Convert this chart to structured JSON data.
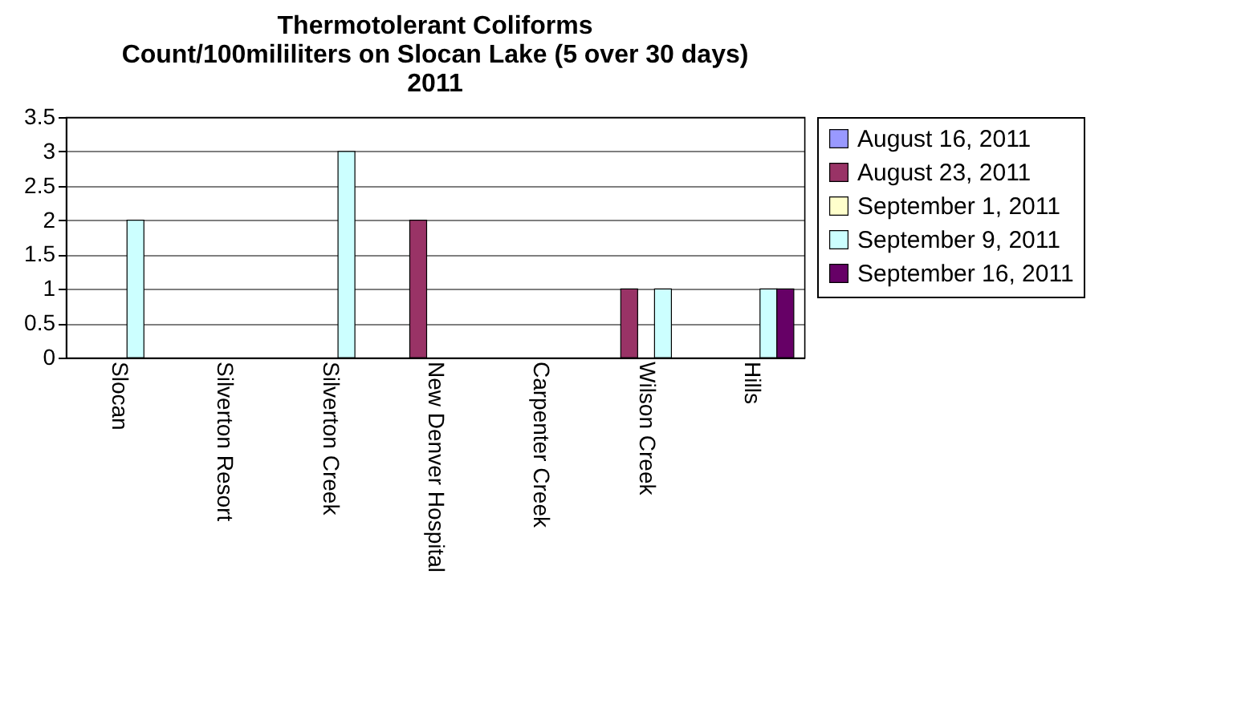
{
  "chart_data": {
    "type": "bar",
    "title": "Thermotolerant Coliforms\nCount/100mililiters on Slocan Lake (5 over 30 days)\n2011",
    "categories": [
      "Slocan",
      "Silverton Resort",
      "Silverton Creek",
      "New Denver Hospital",
      "Carpenter Creek",
      "Wilson Creek",
      "Hills"
    ],
    "series": [
      {
        "name": "August 16, 2011",
        "color": "#9999ff",
        "values": [
          null,
          null,
          null,
          null,
          null,
          null,
          null
        ]
      },
      {
        "name": "August 23, 2011",
        "color": "#993366",
        "values": [
          null,
          null,
          null,
          2,
          null,
          1,
          null
        ]
      },
      {
        "name": "September 1, 2011",
        "color": "#ffffcc",
        "values": [
          null,
          null,
          null,
          null,
          null,
          null,
          null
        ]
      },
      {
        "name": "September 9, 2011",
        "color": "#ccffff",
        "values": [
          2,
          null,
          3,
          null,
          null,
          1,
          1
        ]
      },
      {
        "name": "September 16, 2011",
        "color": "#660066",
        "values": [
          null,
          null,
          null,
          null,
          null,
          null,
          1
        ]
      }
    ],
    "ylim": [
      0,
      3.5
    ],
    "yticks": [
      0,
      0.5,
      1,
      1.5,
      2,
      2.5,
      3,
      3.5
    ],
    "grid": "y",
    "legend": "right"
  }
}
